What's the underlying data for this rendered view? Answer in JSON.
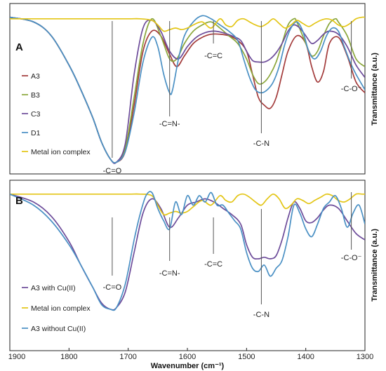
{
  "chart_data": [
    {
      "type": "line",
      "panel_label": "A",
      "xlabel": "",
      "ylabel": "Transmittance (a.u.)",
      "xlim": [
        1900,
        1300
      ],
      "x_reversed": true,
      "grid": false,
      "legend_position": "left",
      "series": [
        {
          "name": "A3",
          "color": "#a33b3b",
          "x": [
            1900,
            1860,
            1830,
            1800,
            1780,
            1760,
            1745,
            1730,
            1720,
            1705,
            1690,
            1675,
            1660,
            1645,
            1630,
            1618,
            1605,
            1590,
            1575,
            1560,
            1545,
            1530,
            1515,
            1500,
            1490,
            1480,
            1470,
            1460,
            1450,
            1440,
            1430,
            1415,
            1400,
            1390,
            1380,
            1370,
            1360,
            1345,
            1330,
            1315,
            1300
          ],
          "y": [
            97,
            94,
            85,
            66,
            50,
            32,
            16,
            5,
            3,
            10,
            40,
            75,
            88,
            85,
            73,
            65,
            72,
            80,
            84,
            86,
            86,
            85,
            82,
            75,
            60,
            45,
            40,
            38,
            45,
            60,
            75,
            85,
            80,
            65,
            55,
            62,
            80,
            84,
            72,
            55,
            48
          ]
        },
        {
          "name": "B3",
          "color": "#8aa63a",
          "x": [
            1900,
            1860,
            1830,
            1800,
            1780,
            1760,
            1745,
            1730,
            1720,
            1705,
            1690,
            1675,
            1660,
            1645,
            1630,
            1618,
            1605,
            1590,
            1575,
            1560,
            1545,
            1530,
            1515,
            1500,
            1490,
            1480,
            1470,
            1460,
            1450,
            1440,
            1430,
            1420,
            1415,
            1400,
            1390,
            1380,
            1370,
            1360,
            1350,
            1345,
            1330,
            1315,
            1300
          ],
          "y": [
            97,
            94,
            85,
            66,
            50,
            32,
            16,
            5,
            3,
            12,
            45,
            80,
            96,
            85,
            70,
            70,
            80,
            88,
            92,
            94,
            90,
            85,
            80,
            70,
            60,
            54,
            55,
            60,
            68,
            80,
            92,
            96,
            94,
            80,
            72,
            75,
            85,
            93,
            96,
            94,
            85,
            70,
            65
          ]
        },
        {
          "name": "C3",
          "color": "#6d4c9a",
          "x": [
            1900,
            1860,
            1830,
            1800,
            1780,
            1760,
            1745,
            1730,
            1720,
            1705,
            1690,
            1675,
            1660,
            1645,
            1630,
            1615,
            1600,
            1585,
            1570,
            1555,
            1540,
            1525,
            1510,
            1500,
            1490,
            1480,
            1470,
            1460,
            1450,
            1440,
            1430,
            1420,
            1410,
            1400,
            1390,
            1380,
            1370,
            1360,
            1345,
            1330,
            1315,
            1300
          ],
          "y": [
            97,
            94,
            85,
            66,
            50,
            32,
            16,
            5,
            3,
            15,
            60,
            90,
            95,
            88,
            75,
            70,
            78,
            84,
            87,
            88,
            87,
            85,
            82,
            75,
            69,
            68,
            68,
            70,
            74,
            80,
            88,
            92,
            90,
            85,
            80,
            82,
            86,
            88,
            86,
            78,
            66,
            58
          ]
        },
        {
          "name": "D1",
          "color": "#4a90c4",
          "x": [
            1900,
            1860,
            1830,
            1800,
            1780,
            1760,
            1745,
            1730,
            1720,
            1705,
            1690,
            1675,
            1660,
            1650,
            1640,
            1630,
            1625,
            1615,
            1605,
            1590,
            1575,
            1560,
            1545,
            1530,
            1515,
            1505,
            1495,
            1485,
            1475,
            1465,
            1455,
            1445,
            1435,
            1425,
            1415,
            1405,
            1395,
            1385,
            1375,
            1365,
            1355,
            1345,
            1335,
            1325,
            1315,
            1300
          ],
          "y": [
            97,
            94,
            85,
            66,
            50,
            32,
            16,
            5,
            3,
            10,
            35,
            68,
            84,
            78,
            60,
            48,
            50,
            70,
            85,
            94,
            98,
            96,
            92,
            88,
            82,
            70,
            58,
            50,
            48,
            50,
            55,
            65,
            80,
            90,
            94,
            88,
            75,
            70,
            75,
            85,
            90,
            88,
            78,
            68,
            60,
            50
          ]
        },
        {
          "name": "Metal ion complex",
          "color": "#e3c515",
          "x": [
            1900,
            1850,
            1800,
            1750,
            1700,
            1680,
            1660,
            1650,
            1640,
            1630,
            1620,
            1610,
            1600,
            1590,
            1575,
            1560,
            1545,
            1535,
            1525,
            1515,
            1505,
            1495,
            1485,
            1475,
            1465,
            1455,
            1445,
            1435,
            1425,
            1415,
            1405,
            1395,
            1385,
            1375,
            1365,
            1355,
            1345,
            1335,
            1325,
            1315,
            1305,
            1300
          ],
          "y": [
            96,
            96,
            96,
            96,
            96,
            96,
            95,
            92,
            88,
            89,
            90,
            89,
            90,
            92,
            94,
            90,
            96,
            92,
            91,
            95,
            96,
            94,
            92,
            91,
            93,
            96,
            93,
            90,
            92,
            95,
            93,
            91,
            93,
            95,
            96,
            95,
            92,
            91,
            93,
            96,
            97,
            97
          ]
        }
      ],
      "annotations": [
        {
          "text": "-C=O",
          "x": 1727
        },
        {
          "text": "-C=N-",
          "x": 1630
        },
        {
          "text": "-C=C",
          "x": 1556
        },
        {
          "text": "-C-N",
          "x": 1475
        },
        {
          "text": "-C-O⁻",
          "x": 1323
        }
      ]
    },
    {
      "type": "line",
      "panel_label": "B",
      "xlabel": "Wavenumber (cm⁻¹)",
      "ylabel": "Transmittance (a.u.)",
      "xlim": [
        1900,
        1300
      ],
      "x_reversed": true,
      "x_ticks": [
        1900,
        1800,
        1700,
        1600,
        1500,
        1400,
        1300
      ],
      "grid": false,
      "legend_position": "bottom-left",
      "series": [
        {
          "name": "A3 with Cu(II)",
          "color": "#6d4c9a",
          "x": [
            1900,
            1860,
            1830,
            1800,
            1780,
            1760,
            1745,
            1730,
            1720,
            1705,
            1690,
            1675,
            1660,
            1645,
            1630,
            1615,
            1600,
            1585,
            1570,
            1555,
            1540,
            1525,
            1510,
            1500,
            1490,
            1480,
            1470,
            1460,
            1450,
            1440,
            1430,
            1420,
            1410,
            1400,
            1390,
            1380,
            1370,
            1360,
            1345,
            1330,
            1315,
            1300
          ],
          "y": [
            97,
            92,
            83,
            67,
            52,
            38,
            28,
            24,
            25,
            35,
            60,
            85,
            94,
            88,
            76,
            82,
            90,
            92,
            94,
            92,
            88,
            84,
            78,
            65,
            57,
            56,
            57,
            56,
            58,
            68,
            82,
            92,
            88,
            80,
            79,
            82,
            87,
            90,
            88,
            80,
            72,
            68
          ]
        },
        {
          "name": "Metal ion complex",
          "color": "#e3c515",
          "x": [
            1900,
            1850,
            1800,
            1750,
            1700,
            1680,
            1660,
            1650,
            1640,
            1630,
            1620,
            1610,
            1600,
            1590,
            1575,
            1560,
            1545,
            1535,
            1525,
            1515,
            1505,
            1495,
            1485,
            1475,
            1465,
            1455,
            1445,
            1435,
            1425,
            1415,
            1405,
            1395,
            1385,
            1375,
            1365,
            1355,
            1345,
            1335,
            1325,
            1315,
            1305,
            1300
          ],
          "y": [
            97,
            97,
            97,
            97,
            97,
            97,
            96,
            90,
            84,
            85,
            86,
            85,
            86,
            89,
            93,
            90,
            96,
            93,
            92,
            96,
            97,
            95,
            92,
            90,
            94,
            97,
            94,
            88,
            90,
            94,
            93,
            91,
            93,
            95,
            97,
            96,
            93,
            92,
            94,
            97,
            97,
            97
          ]
        },
        {
          "name": "A3 without Cu(II)",
          "color": "#4a90c4",
          "x": [
            1900,
            1860,
            1830,
            1800,
            1780,
            1760,
            1745,
            1730,
            1720,
            1705,
            1690,
            1680,
            1670,
            1660,
            1650,
            1640,
            1630,
            1620,
            1610,
            1600,
            1590,
            1580,
            1570,
            1560,
            1550,
            1540,
            1530,
            1520,
            1510,
            1500,
            1490,
            1480,
            1470,
            1460,
            1450,
            1440,
            1430,
            1420,
            1410,
            1400,
            1390,
            1380,
            1370,
            1360,
            1350,
            1340,
            1330,
            1320,
            1310,
            1300
          ],
          "y": [
            97,
            90,
            80,
            65,
            52,
            38,
            27,
            24,
            25,
            40,
            68,
            84,
            96,
            98,
            88,
            80,
            75,
            92,
            84,
            96,
            90,
            96,
            92,
            98,
            90,
            90,
            85,
            80,
            75,
            60,
            50,
            48,
            52,
            45,
            50,
            55,
            70,
            90,
            85,
            75,
            70,
            78,
            88,
            92,
            96,
            88,
            76,
            85,
            90,
            78
          ]
        }
      ],
      "annotations": [
        {
          "text": "-C=O",
          "x": 1727
        },
        {
          "text": "-C=N-",
          "x": 1630
        },
        {
          "text": "-C=C",
          "x": 1556
        },
        {
          "text": "-C-N",
          "x": 1475
        },
        {
          "text": "-C-O⁻",
          "x": 1323
        }
      ]
    }
  ]
}
